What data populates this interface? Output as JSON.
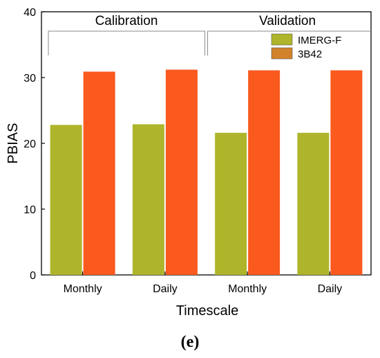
{
  "chart_data": {
    "type": "bar",
    "categories": [
      "Monthly",
      "Daily",
      "Monthly",
      "Daily"
    ],
    "groups": [
      {
        "label": "Calibration",
        "categories": [
          "Monthly",
          "Daily"
        ]
      },
      {
        "label": "Validation",
        "categories": [
          "Monthly",
          "Daily"
        ]
      }
    ],
    "series": [
      {
        "name": "IMERG-F",
        "values": [
          22.8,
          22.9,
          21.6,
          21.6
        ],
        "color": "#afb52a"
      },
      {
        "name": "3B42",
        "values": [
          30.9,
          31.2,
          31.1,
          31.1
        ],
        "color": "#fa5a1e"
      }
    ],
    "legend_swatch_colors": [
      "#afb52a",
      "#d2822a"
    ],
    "xlabel": "Timescale",
    "ylabel": "PBIAS",
    "ylim": [
      0,
      40
    ],
    "yticks": [
      "0",
      "10",
      "20",
      "30",
      "40"
    ],
    "legend_position": "top-right",
    "grid": false
  },
  "caption": "(e)"
}
